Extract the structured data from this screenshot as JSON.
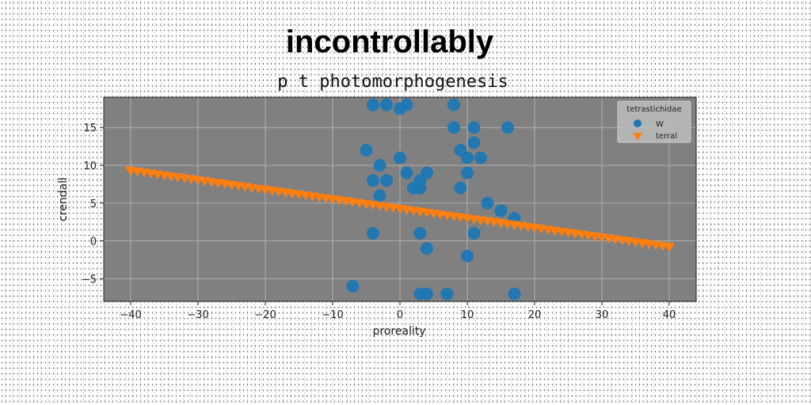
{
  "chart_data": {
    "type": "scatter",
    "title": "incontrollably",
    "subtitle": "p t photomorphogenesis",
    "xlabel": "proreality",
    "ylabel": "crendall",
    "xlim": [
      -44,
      44
    ],
    "ylim": [
      -8,
      19
    ],
    "xticks": [
      -40,
      -30,
      -20,
      -10,
      0,
      10,
      20,
      30,
      40
    ],
    "yticks": [
      -5,
      0,
      5,
      10,
      15
    ],
    "grid": true,
    "legend": {
      "title": "tetrastichidae",
      "position": "top-right"
    },
    "series": [
      {
        "name": "W",
        "marker": "circle",
        "color": "#1f77b4",
        "points": [
          [
            -4,
            18
          ],
          [
            -2,
            18
          ],
          [
            0,
            17.5
          ],
          [
            1,
            18
          ],
          [
            8,
            18
          ],
          [
            -5,
            12
          ],
          [
            8,
            15
          ],
          [
            11,
            15
          ],
          [
            16,
            15
          ],
          [
            -3,
            10
          ],
          [
            0,
            11
          ],
          [
            9,
            12
          ],
          [
            11,
            13
          ],
          [
            10,
            11
          ],
          [
            12,
            11
          ],
          [
            -4,
            8
          ],
          [
            -2,
            8
          ],
          [
            1,
            9
          ],
          [
            4,
            9
          ],
          [
            3,
            8
          ],
          [
            10,
            9
          ],
          [
            -3,
            6
          ],
          [
            2,
            7
          ],
          [
            3,
            7
          ],
          [
            9,
            7
          ],
          [
            13,
            5
          ],
          [
            15,
            4
          ],
          [
            17,
            3
          ],
          [
            -4,
            1
          ],
          [
            3,
            1
          ],
          [
            11,
            1
          ],
          [
            4,
            -1
          ],
          [
            10,
            -2
          ],
          [
            -7,
            -6
          ],
          [
            3,
            -7
          ],
          [
            4,
            -7
          ],
          [
            7,
            -7
          ],
          [
            17,
            -7
          ]
        ]
      },
      {
        "name": "terral",
        "marker": "triangle-down",
        "color": "#ff7f0e",
        "line": {
          "x_start": -40,
          "x_end": 40,
          "y_start": 9.3,
          "y_end": -0.8,
          "count": 81
        }
      }
    ]
  }
}
